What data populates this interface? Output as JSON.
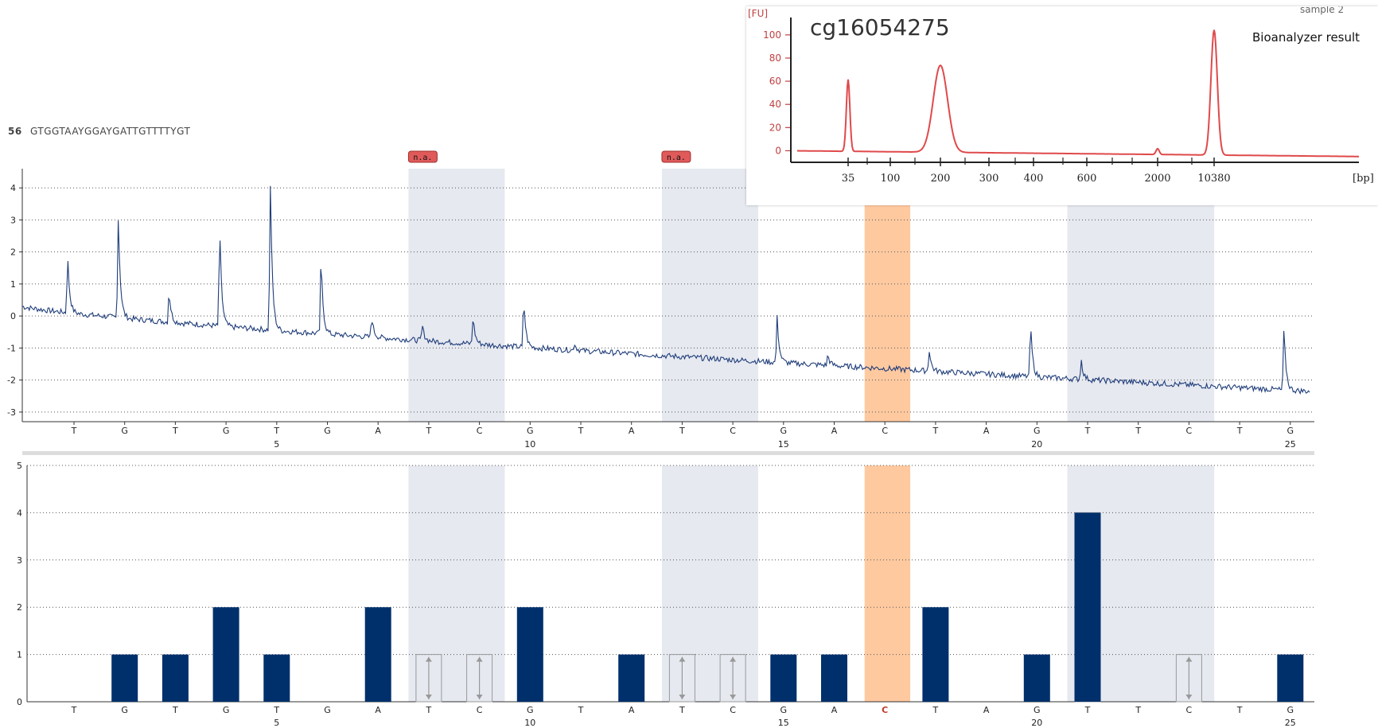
{
  "sequence_header": {
    "prefix": "56",
    "sequence": "GTGGTAAYGGAYGATTGTTTTYGT"
  },
  "chart_data": [
    {
      "type": "line",
      "name": "pyrogram",
      "ylim": [
        -3.3,
        4.6
      ],
      "yticks": [
        -3,
        -2,
        -1,
        0,
        1,
        2,
        3,
        4
      ],
      "grid": true,
      "dispensation_order": [
        "T",
        "G",
        "T",
        "G",
        "T",
        "G",
        "A",
        "T",
        "C",
        "G",
        "T",
        "A",
        "T",
        "C",
        "G",
        "A",
        "C",
        "T",
        "A",
        "G",
        "T",
        "T",
        "C",
        "T",
        "G"
      ],
      "position_ticks": [
        {
          "position": 5,
          "label": "5"
        },
        {
          "position": 10,
          "label": "10"
        },
        {
          "position": 15,
          "label": "15"
        },
        {
          "position": 20,
          "label": "20"
        },
        {
          "position": 25,
          "label": "25"
        }
      ],
      "baseline": {
        "start": 0.3,
        "end": -2.35,
        "noise": 0.08
      },
      "peaks": [
        {
          "position": 1,
          "value": 1.9
        },
        {
          "position": 2,
          "value": 3.15
        },
        {
          "position": 3,
          "value": 0.85
        },
        {
          "position": 4,
          "value": 2.8
        },
        {
          "position": 5,
          "value": 4.15
        },
        {
          "position": 6,
          "value": 1.9
        },
        {
          "position": 7,
          "value": 0.0
        },
        {
          "position": 8,
          "value": -0.3
        },
        {
          "position": 9,
          "value": 0.0
        },
        {
          "position": 10,
          "value": 0.55
        },
        {
          "position": 11,
          "value": -0.85
        },
        {
          "position": 15,
          "value": 0.0
        },
        {
          "position": 16,
          "value": -1.2
        },
        {
          "position": 18,
          "value": -1.05
        },
        {
          "position": 20,
          "value": -0.2
        },
        {
          "position": 21,
          "value": -1.35
        },
        {
          "position": 25,
          "value": -0.35
        }
      ],
      "shaded_regions": [
        {
          "from": 7.6,
          "to": 9.5,
          "kind": "variable",
          "label": "n.a."
        },
        {
          "from": 12.6,
          "to": 14.5,
          "kind": "variable",
          "label": "n.a."
        },
        {
          "from": 16.6,
          "to": 17.5,
          "kind": "cpg"
        },
        {
          "from": 20.6,
          "to": 23.5,
          "kind": "variable"
        }
      ],
      "colors": {
        "line": "#1f3d7a",
        "variable": "#e6e9f0",
        "cpg": "#ffc9a0",
        "label_box": "#e05a5a"
      }
    },
    {
      "type": "bar",
      "name": "histogram",
      "ylim": [
        0,
        5
      ],
      "yticks": [
        0,
        1,
        2,
        3,
        4,
        5
      ],
      "grid": true,
      "categories": [
        "T",
        "G",
        "T",
        "G",
        "T",
        "G",
        "A",
        "T",
        "C",
        "G",
        "T",
        "A",
        "T",
        "C",
        "G",
        "A",
        "C",
        "T",
        "A",
        "G",
        "T",
        "T",
        "C",
        "T",
        "G"
      ],
      "values": [
        0,
        1,
        1,
        2,
        1,
        0,
        2,
        0,
        0,
        2,
        0,
        1,
        0,
        0,
        1,
        1,
        0,
        2,
        0,
        1,
        4,
        0,
        0,
        0,
        1
      ],
      "position_ticks": [
        "5",
        "10",
        "15",
        "20",
        "25"
      ],
      "highlighted_category_index": 16,
      "variable_markers": [
        {
          "position": 8,
          "value": 1
        },
        {
          "position": 9,
          "value": 1
        },
        {
          "position": 13,
          "value": 1
        },
        {
          "position": 14,
          "value": 1
        },
        {
          "position": 21,
          "value": 4
        },
        {
          "position": 23,
          "value": 1
        }
      ],
      "colors": {
        "bar": "#00306b",
        "highlight_letter": "#c0392b",
        "marker": "#999999"
      }
    },
    {
      "type": "line",
      "name": "bioanalyzer",
      "title": "cg16054275",
      "annotation": "Bioanalyzer result",
      "corner_text": "sample 2",
      "ylabel": "[FU]",
      "xlabel": "[bp]",
      "yticks": [
        0,
        20,
        40,
        60,
        80,
        100
      ],
      "ylim": [
        -10,
        115
      ],
      "xtick_labels": [
        "35",
        "100",
        "200",
        "300",
        "400",
        "600",
        "2000",
        "10380"
      ],
      "peaks": [
        {
          "at_label": "35",
          "value": 62
        },
        {
          "at_label": "200",
          "value": 75
        },
        {
          "at_label": "2000",
          "value": 5
        },
        {
          "at_label": "10380",
          "value": 108
        }
      ],
      "colors": {
        "line": "#e0494b",
        "axis": "#222222",
        "grid": "#e08080"
      }
    }
  ]
}
